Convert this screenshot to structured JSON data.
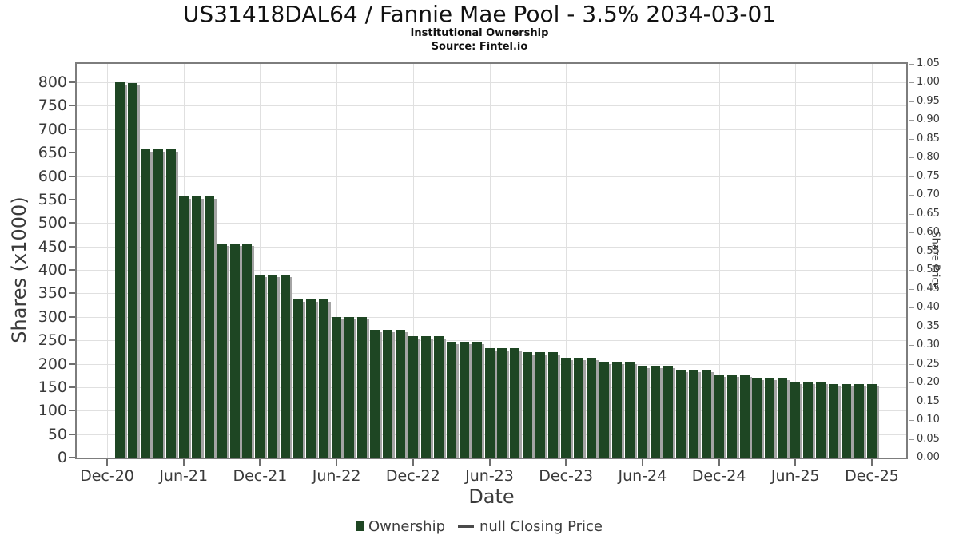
{
  "header": {
    "title": "US31418DAL64 / Fannie Mae Pool - 3.5% 2034-03-01",
    "subtitle": "Institutional Ownership",
    "source": "Source: Fintel.io"
  },
  "legend": {
    "ownership_label": "Ownership",
    "price_label": "null Closing Price"
  },
  "colors": {
    "bar": "#1e4623",
    "bar_shadow": "#a4a4a4",
    "grid": "#e0e0e0",
    "plot_border": "#7d7d7d",
    "tick_text": "#3a3a3a",
    "line_marker": "#4a4a4a"
  },
  "chart_data": {
    "type": "bar",
    "title": "US31418DAL64 / Fannie Mae Pool - 3.5% 2034-03-01",
    "subtitle": "Institutional Ownership",
    "source": "Source: Fintel.io",
    "xlabel": "Date",
    "ylabel_left": "Shares (x1000)",
    "ylabel_right": "Share Price",
    "ylim_left": [
      0,
      800
    ],
    "ylim_right": [
      0.0,
      1.05
    ],
    "grid": true,
    "legend_position": "bottom-center",
    "left_tick_values": [
      0,
      50,
      100,
      150,
      200,
      250,
      300,
      350,
      400,
      450,
      500,
      550,
      600,
      650,
      700,
      750,
      800
    ],
    "right_tick_labels": [
      "0.00",
      "0.05",
      "0.10",
      "0.15",
      "0.20",
      "0.25",
      "0.30",
      "0.35",
      "0.40",
      "0.45",
      "0.50",
      "0.55",
      "0.60",
      "0.65",
      "0.70",
      "0.75",
      "0.80",
      "0.85",
      "0.90",
      "0.95",
      "1.00",
      "1.05"
    ],
    "x_tick_labels": [
      "Dec-20",
      "Jun-21",
      "Dec-21",
      "Jun-22",
      "Dec-22",
      "Jun-23",
      "Dec-23",
      "Jun-24",
      "Dec-24",
      "Jun-25",
      "Dec-25"
    ],
    "x": [
      "Jan-21",
      "Feb-21",
      "Mar-21",
      "Apr-21",
      "May-21",
      "Jun-21",
      "Jul-21",
      "Aug-21",
      "Sep-21",
      "Oct-21",
      "Nov-21",
      "Dec-21",
      "Jan-22",
      "Feb-22",
      "Mar-22",
      "Apr-22",
      "May-22",
      "Jun-22",
      "Jul-22",
      "Aug-22",
      "Sep-22",
      "Oct-22",
      "Nov-22",
      "Dec-22",
      "Jan-23",
      "Feb-23",
      "Mar-23",
      "Apr-23",
      "May-23",
      "Jun-23",
      "Jul-23",
      "Aug-23",
      "Sep-23",
      "Oct-23",
      "Nov-23",
      "Dec-23",
      "Jan-24",
      "Feb-24",
      "Mar-24",
      "Apr-24",
      "May-24",
      "Jun-24",
      "Jul-24",
      "Aug-24",
      "Sep-24",
      "Oct-24",
      "Nov-24",
      "Dec-24",
      "Jan-25",
      "Feb-25",
      "Mar-25",
      "Apr-25",
      "May-25",
      "Jun-25",
      "Jul-25",
      "Aug-25",
      "Sep-25",
      "Oct-25",
      "Nov-25",
      "Dec-25"
    ],
    "series": [
      {
        "name": "Ownership",
        "type": "bar",
        "color": "#1e4623",
        "values": [
          800,
          798,
          657,
          657,
          657,
          557,
          557,
          557,
          456,
          456,
          456,
          390,
          390,
          390,
          337,
          337,
          337,
          300,
          300,
          300,
          272,
          272,
          272,
          258,
          258,
          258,
          246,
          246,
          246,
          234,
          234,
          234,
          224,
          224,
          224,
          212,
          212,
          212,
          204,
          204,
          204,
          195,
          195,
          195,
          187,
          187,
          187,
          177,
          177,
          177,
          170,
          170,
          170,
          161,
          161,
          161,
          156,
          156,
          156,
          156
        ]
      },
      {
        "name": "null Closing Price",
        "type": "line",
        "color": "#4a4a4a",
        "values": null
      }
    ]
  }
}
